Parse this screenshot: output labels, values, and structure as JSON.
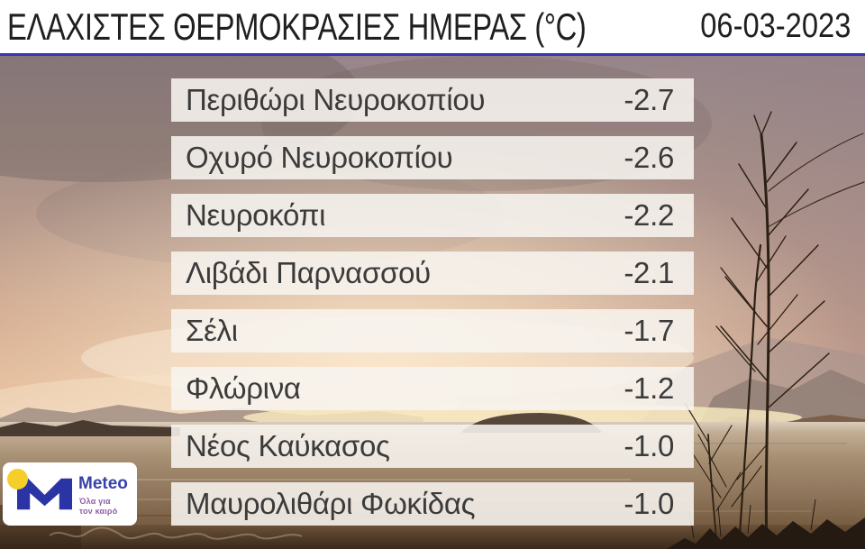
{
  "header": {
    "title": "ΕΛΑΧΙΣΤΕΣ ΘΕΡΜΟΚΡΑΣΙΕΣ ΗΜΕΡΑΣ (°C)",
    "date": "06-03-2023"
  },
  "stations": [
    {
      "name": "Περιθώρι Νευροκοπίου",
      "temp": "-2.7"
    },
    {
      "name": "Οχυρό Νευροκοπίου",
      "temp": "-2.6"
    },
    {
      "name": "Νευροκόπι",
      "temp": "-2.2"
    },
    {
      "name": "Λιβάδι Παρνασσού",
      "temp": "-2.1"
    },
    {
      "name": "Σέλι",
      "temp": "-1.7"
    },
    {
      "name": "Φλώρινα",
      "temp": "-1.2"
    },
    {
      "name": "Νέος Καύκασος",
      "temp": "-1.0"
    },
    {
      "name": "Μαυρολιθάρι Φωκίδας",
      "temp": "-1.0"
    }
  ],
  "logo": {
    "brand": "Meteo",
    "tagline1": "Όλα για",
    "tagline2": "τον καιρό"
  },
  "colors": {
    "header_bg": "#ffffff",
    "header_text": "#1f1f1f",
    "divider_blue": "#3535b2",
    "row_bg": "rgba(247,244,239,0.88)",
    "row_text": "#3b3b3b",
    "brand_blue": "#2b34a5",
    "brand_yellow": "#f5ce2a",
    "tagline_purple": "#8f5da2"
  },
  "chart_data": {
    "type": "table",
    "title": "ΕΛΑΧΙΣΤΕΣ ΘΕΡΜΟΚΡΑΣΙΕΣ ΗΜΕΡΑΣ (°C)",
    "date": "06-03-2023",
    "unit": "°C",
    "categories": [
      "Περιθώρι Νευροκοπίου",
      "Οχυρό Νευροκοπίου",
      "Νευροκόπι",
      "Λιβάδι Παρνασσού",
      "Σέλι",
      "Φλώρινα",
      "Νέος Καύκασος",
      "Μαυρολιθάρι Φωκίδας"
    ],
    "values": [
      -2.7,
      -2.6,
      -2.2,
      -2.1,
      -1.7,
      -1.2,
      -1.0,
      -1.0
    ],
    "layout": "ranked list over photo background, values right-aligned"
  }
}
